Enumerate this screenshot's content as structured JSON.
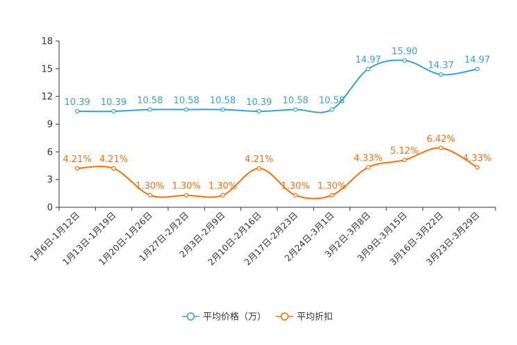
{
  "chart_data": {
    "type": "line",
    "categories": [
      "1月6日-1月12日",
      "1月13日-1月19日",
      "1月20日-1月26日",
      "1月27日-2月2日",
      "2月3日-2月9日",
      "2月10日-2月16日",
      "2月17日-2月23日",
      "2月24日-3月1日",
      "3月2日-3月8日",
      "3月9日-3月15日",
      "3月16日-3月22日",
      "3月23日-3月29日"
    ],
    "ylim": [
      0,
      18
    ],
    "yticks": [
      0,
      3,
      6,
      9,
      12,
      15,
      18
    ],
    "smooth": true,
    "legend_position": "bottom",
    "series": [
      {
        "name": "平均价格（万）",
        "color": "#3a9fd0",
        "values": [
          10.39,
          10.39,
          10.58,
          10.58,
          10.58,
          10.39,
          10.58,
          10.58,
          14.97,
          15.9,
          14.37,
          14.97
        ],
        "labels": [
          "10.39",
          "10.39",
          "10.58",
          "10.58",
          "10.58",
          "10.39",
          "10.58",
          "10.58",
          "14.97",
          "15.90",
          "14.37",
          "14.97"
        ]
      },
      {
        "name": "平均折扣",
        "color": "#f5700f",
        "values": [
          4.21,
          4.21,
          1.3,
          1.3,
          1.3,
          4.21,
          1.3,
          1.3,
          4.33,
          5.12,
          6.42,
          4.33
        ],
        "labels": [
          "4.21%",
          "4.21%",
          "1.30%",
          "1.30%",
          "1.30%",
          "4.21%",
          "1.30%",
          "1.30%",
          "4.33%",
          "5.12%",
          "6.42%",
          "4.33%"
        ]
      }
    ]
  }
}
